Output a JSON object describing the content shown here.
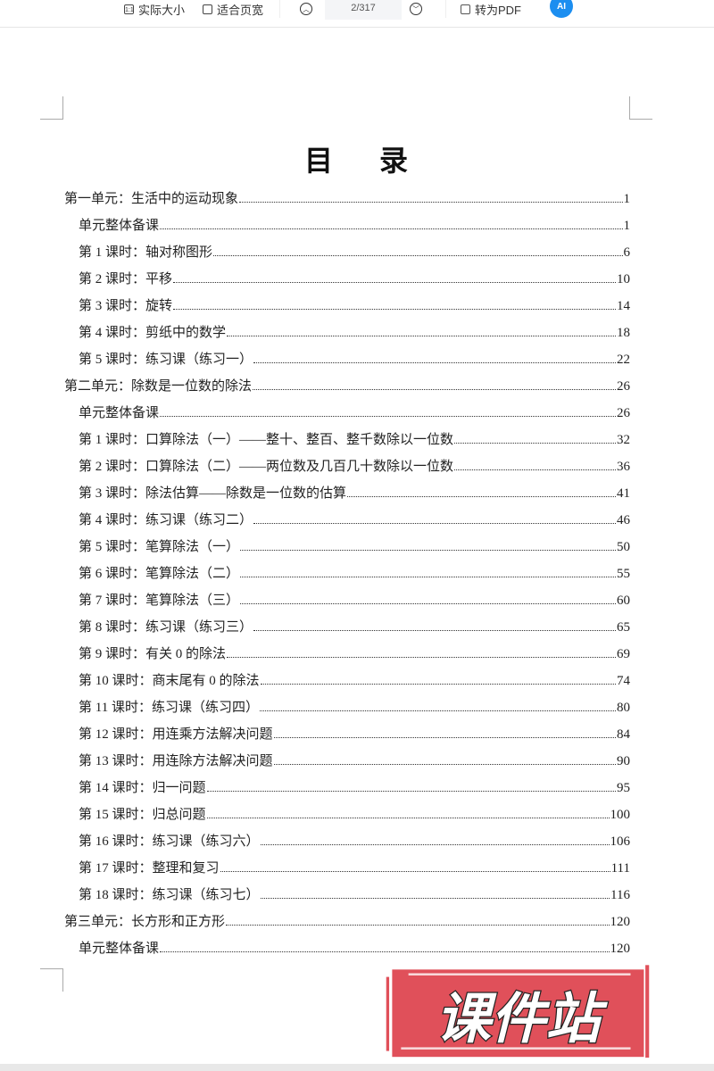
{
  "toolbar": {
    "actual_size": "实际大小",
    "fit_width": "适合页宽",
    "page_indicator": "2/317",
    "to_pdf": "转为PDF",
    "ai_label": "AI"
  },
  "document": {
    "title": "目 录",
    "entries": [
      {
        "label": "第一单元：生活中的运动现象",
        "page": "1",
        "level": 0
      },
      {
        "label": "单元整体备课",
        "page": "1",
        "level": 1
      },
      {
        "label": "第 1 课时：轴对称图形",
        "page": "6",
        "level": 1
      },
      {
        "label": "第 2 课时：平移",
        "page": "10",
        "level": 1
      },
      {
        "label": "第 3 课时：旋转",
        "page": "14",
        "level": 1
      },
      {
        "label": "第 4 课时：剪纸中的数学",
        "page": "18",
        "level": 1
      },
      {
        "label": "第 5 课时：练习课（练习一）",
        "page": "22",
        "level": 1
      },
      {
        "label": "第二单元：除数是一位数的除法",
        "page": "26",
        "level": 0
      },
      {
        "label": "单元整体备课",
        "page": "26",
        "level": 1
      },
      {
        "label": "第 1 课时：口算除法（一）——整十、整百、整千数除以一位数",
        "page": "32",
        "level": 1
      },
      {
        "label": "第 2 课时：口算除法（二）——两位数及几百几十数除以一位数",
        "page": "36",
        "level": 1
      },
      {
        "label": "第 3 课时：除法估算——除数是一位数的估算",
        "page": "41",
        "level": 1
      },
      {
        "label": "第 4 课时：练习课（练习二）",
        "page": "46",
        "level": 1
      },
      {
        "label": "第 5 课时：笔算除法（一）",
        "page": "50",
        "level": 1
      },
      {
        "label": "第 6 课时：笔算除法（二）",
        "page": "55",
        "level": 1
      },
      {
        "label": "第 7 课时：笔算除法（三）",
        "page": "60",
        "level": 1
      },
      {
        "label": "第 8 课时：练习课（练习三）",
        "page": "65",
        "level": 1
      },
      {
        "label": "第 9 课时：有关 0 的除法",
        "page": "69",
        "level": 1
      },
      {
        "label": "第 10 课时：商末尾有 0 的除法",
        "page": "74",
        "level": 1
      },
      {
        "label": "第 11 课时：练习课（练习四）",
        "page": "80",
        "level": 1
      },
      {
        "label": "第 12 课时：用连乘方法解决问题",
        "page": "84",
        "level": 1
      },
      {
        "label": "第 13 课时：用连除方法解决问题",
        "page": "90",
        "level": 1
      },
      {
        "label": "第 14 课时：归一问题",
        "page": "95",
        "level": 1
      },
      {
        "label": "第 15 课时：归总问题",
        "page": "100",
        "level": 1
      },
      {
        "label": "第 16 课时：练习课（练习六）",
        "page": "106",
        "level": 1
      },
      {
        "label": "第 17 课时：整理和复习",
        "page": "111",
        "level": 1
      },
      {
        "label": "第 18 课时：练习课（练习七）",
        "page": "116",
        "level": 1
      },
      {
        "label": "第三单元：长方形和正方形",
        "page": "120",
        "level": 0
      },
      {
        "label": "单元整体备课",
        "page": "120",
        "level": 1
      }
    ]
  },
  "watermark": {
    "text": "课件站",
    "color": "#e0505a"
  }
}
